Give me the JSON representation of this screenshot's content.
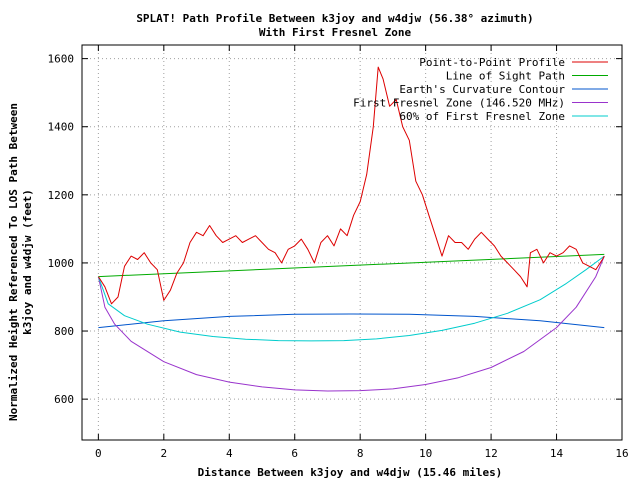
{
  "chart_data": {
    "type": "line",
    "title": "SPLAT! Path Profile Between k3joy and w4djw (56.38° azimuth)",
    "subtitle": "With First Fresnel Zone",
    "xlabel": "Distance Between k3joy and w4djw (15.46 miles)",
    "ylabel_line1": "Normalized Height Referenced To LOS Path Between",
    "ylabel_line2": "k3joy and w4djw (feet)",
    "xlim": [
      -0.5,
      16
    ],
    "ylim": [
      480,
      1640
    ],
    "xticks": [
      0,
      2,
      4,
      6,
      8,
      10,
      12,
      14,
      16
    ],
    "yticks": [
      600,
      800,
      1000,
      1200,
      1400,
      1600
    ],
    "grid": true,
    "legend_position": "top-right",
    "series": [
      {
        "name": "Point-to-Point Profile",
        "color": "#dd0000",
        "points": [
          [
            0,
            960
          ],
          [
            0.2,
            930
          ],
          [
            0.4,
            880
          ],
          [
            0.6,
            900
          ],
          [
            0.8,
            990
          ],
          [
            1.0,
            1020
          ],
          [
            1.2,
            1010
          ],
          [
            1.4,
            1030
          ],
          [
            1.6,
            1000
          ],
          [
            1.8,
            980
          ],
          [
            2.0,
            890
          ],
          [
            2.2,
            920
          ],
          [
            2.4,
            970
          ],
          [
            2.6,
            1000
          ],
          [
            2.8,
            1060
          ],
          [
            3.0,
            1090
          ],
          [
            3.2,
            1080
          ],
          [
            3.4,
            1110
          ],
          [
            3.6,
            1080
          ],
          [
            3.8,
            1060
          ],
          [
            4.0,
            1070
          ],
          [
            4.2,
            1080
          ],
          [
            4.4,
            1060
          ],
          [
            4.6,
            1070
          ],
          [
            4.8,
            1080
          ],
          [
            5.0,
            1060
          ],
          [
            5.2,
            1040
          ],
          [
            5.4,
            1030
          ],
          [
            5.6,
            1000
          ],
          [
            5.8,
            1040
          ],
          [
            6.0,
            1050
          ],
          [
            6.2,
            1070
          ],
          [
            6.4,
            1040
          ],
          [
            6.6,
            1000
          ],
          [
            6.8,
            1060
          ],
          [
            7.0,
            1080
          ],
          [
            7.2,
            1050
          ],
          [
            7.4,
            1100
          ],
          [
            7.6,
            1080
          ],
          [
            7.8,
            1140
          ],
          [
            8.0,
            1180
          ],
          [
            8.2,
            1260
          ],
          [
            8.4,
            1400
          ],
          [
            8.55,
            1575
          ],
          [
            8.7,
            1540
          ],
          [
            8.9,
            1460
          ],
          [
            9.1,
            1480
          ],
          [
            9.3,
            1400
          ],
          [
            9.5,
            1360
          ],
          [
            9.7,
            1240
          ],
          [
            9.9,
            1200
          ],
          [
            10.1,
            1140
          ],
          [
            10.3,
            1080
          ],
          [
            10.5,
            1020
          ],
          [
            10.7,
            1080
          ],
          [
            10.9,
            1060
          ],
          [
            11.1,
            1060
          ],
          [
            11.3,
            1040
          ],
          [
            11.5,
            1070
          ],
          [
            11.7,
            1090
          ],
          [
            11.9,
            1070
          ],
          [
            12.1,
            1050
          ],
          [
            12.3,
            1020
          ],
          [
            12.5,
            1000
          ],
          [
            12.7,
            980
          ],
          [
            12.9,
            960
          ],
          [
            13.1,
            930
          ],
          [
            13.2,
            1030
          ],
          [
            13.4,
            1040
          ],
          [
            13.6,
            1000
          ],
          [
            13.8,
            1030
          ],
          [
            14.0,
            1020
          ],
          [
            14.2,
            1030
          ],
          [
            14.4,
            1050
          ],
          [
            14.6,
            1040
          ],
          [
            14.8,
            1000
          ],
          [
            15.0,
            990
          ],
          [
            15.2,
            980
          ],
          [
            15.4,
            1010
          ],
          [
            15.46,
            1020
          ]
        ]
      },
      {
        "name": "Line of Sight Path",
        "color": "#00aa00",
        "points": [
          [
            0,
            960
          ],
          [
            15.46,
            1025
          ]
        ]
      },
      {
        "name": "Earth's Curvature Contour",
        "color": "#0055cc",
        "points": [
          [
            0,
            810
          ],
          [
            2,
            830
          ],
          [
            4,
            843
          ],
          [
            6,
            849
          ],
          [
            7.73,
            850
          ],
          [
            9.5,
            849
          ],
          [
            11.5,
            843
          ],
          [
            13.5,
            830
          ],
          [
            15.46,
            810
          ]
        ]
      },
      {
        "name": "First Fresnel Zone (146.520 MHz)",
        "color": "#9933cc",
        "points": [
          [
            0,
            960
          ],
          [
            0.2,
            870
          ],
          [
            0.5,
            820
          ],
          [
            1,
            770
          ],
          [
            2,
            710
          ],
          [
            3,
            672
          ],
          [
            4,
            650
          ],
          [
            5,
            636
          ],
          [
            6,
            627
          ],
          [
            7,
            624
          ],
          [
            8,
            625
          ],
          [
            9,
            630
          ],
          [
            10,
            643
          ],
          [
            11,
            663
          ],
          [
            12,
            693
          ],
          [
            13,
            740
          ],
          [
            14,
            810
          ],
          [
            14.6,
            870
          ],
          [
            15.2,
            960
          ],
          [
            15.46,
            1020
          ]
        ]
      },
      {
        "name": "60% of First Fresnel Zone",
        "color": "#00cccc",
        "points": [
          [
            0,
            960
          ],
          [
            0.3,
            880
          ],
          [
            0.8,
            845
          ],
          [
            1.5,
            820
          ],
          [
            2.5,
            797
          ],
          [
            3.5,
            784
          ],
          [
            4.5,
            776
          ],
          [
            5.5,
            772
          ],
          [
            6.5,
            771
          ],
          [
            7.5,
            772
          ],
          [
            8.5,
            777
          ],
          [
            9.5,
            787
          ],
          [
            10.5,
            802
          ],
          [
            11.5,
            823
          ],
          [
            12.5,
            852
          ],
          [
            13.5,
            892
          ],
          [
            14.3,
            940
          ],
          [
            14.9,
            980
          ],
          [
            15.46,
            1020
          ]
        ]
      }
    ]
  }
}
